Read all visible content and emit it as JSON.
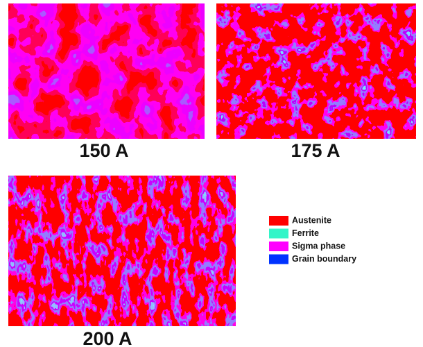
{
  "panels": [
    {
      "label": "150 A"
    },
    {
      "label": "175 A"
    },
    {
      "label": "200 A"
    }
  ],
  "legend": [
    {
      "label": "Austenite",
      "color": "#ff0000"
    },
    {
      "label": "Ferrite",
      "color": "#33f5c8"
    },
    {
      "label": "Sigma phase",
      "color": "#ff00ff"
    },
    {
      "label": "Grain boundary",
      "color": "#0033ff"
    }
  ]
}
